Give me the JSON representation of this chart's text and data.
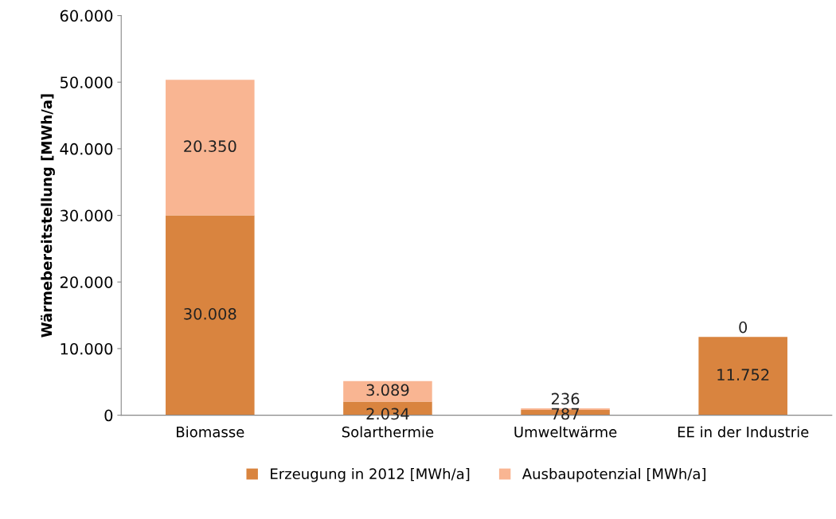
{
  "chart_data": {
    "type": "bar",
    "stacked": true,
    "ylabel": "Wärmebereitstellung [MWh/a]",
    "categories": [
      "Biomasse",
      "Solarthermie",
      "Umweltwärme",
      "EE in der Industrie"
    ],
    "series": [
      {
        "name": "Erzeugung in 2012 [MWh/a]",
        "color": "#d9843f",
        "values": [
          30008,
          2034,
          787,
          11752
        ],
        "value_labels": [
          "30.008",
          "2.034",
          "787",
          "11.752"
        ]
      },
      {
        "name": "Ausbaupotenzial [MWh/a]",
        "color": "#f9b592",
        "values": [
          20350,
          3089,
          236,
          0
        ],
        "value_labels": [
          "20.350",
          "3.089",
          "236",
          "0"
        ]
      }
    ],
    "ylim": [
      0,
      60000
    ],
    "yticks": [
      {
        "value": 0,
        "label": "0"
      },
      {
        "value": 10000,
        "label": "10.000"
      },
      {
        "value": 20000,
        "label": "20.000"
      },
      {
        "value": 30000,
        "label": "30.000"
      },
      {
        "value": 40000,
        "label": "40.000"
      },
      {
        "value": 50000,
        "label": "50.000"
      },
      {
        "value": 60000,
        "label": "60.000"
      }
    ],
    "grid": false,
    "legend": "bottom"
  }
}
